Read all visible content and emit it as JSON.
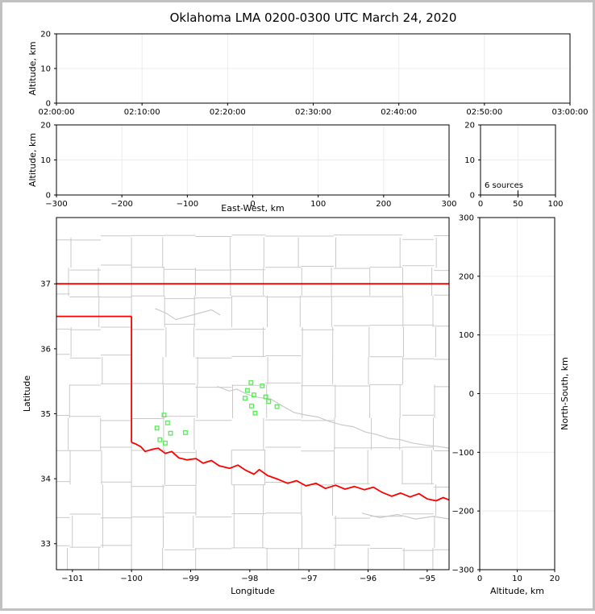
{
  "title": "Oklahoma LMA 0200-0300 UTC March 24, 2020",
  "colors": {
    "background": "#ffffff",
    "frame_border": "#c1c1c1",
    "axis": "#000000",
    "grid": "#ececec",
    "county_line": "#c9c9c9",
    "state_border": "#ff0000",
    "station_marker": "#55ee55",
    "histogram_line": "#000000"
  },
  "chart_data": [
    {
      "id": "time_altitude",
      "type": "scatter",
      "xlabel": "",
      "ylabel": "Altitude, km",
      "xlim": [
        0,
        3600
      ],
      "ylim": [
        0,
        20
      ],
      "xticks": [
        0,
        600,
        1200,
        1800,
        2400,
        3000,
        3600
      ],
      "xtick_labels": [
        "02:00:00",
        "02:10:00",
        "02:20:00",
        "02:30:00",
        "02:40:00",
        "02:50:00",
        "03:00:00"
      ],
      "yticks": [
        0,
        10,
        20
      ],
      "ytick_labels": [
        "0",
        "10",
        "20"
      ],
      "grid": true,
      "points": []
    },
    {
      "id": "eastwest_altitude",
      "type": "scatter",
      "xlabel": "East-West, km",
      "ylabel": "Altitude, km",
      "xlim": [
        -300,
        300
      ],
      "ylim": [
        0,
        20
      ],
      "xticks": [
        -300,
        -200,
        -100,
        0,
        100,
        200,
        300
      ],
      "xtick_labels": [
        "−300",
        "−200",
        "−100",
        "0",
        "100",
        "200",
        "300"
      ],
      "yticks": [
        0,
        10,
        20
      ],
      "ytick_labels": [
        "0",
        "10",
        "20"
      ],
      "grid": true,
      "points": []
    },
    {
      "id": "altitude_histogram",
      "type": "line",
      "annotation": "6 sources",
      "xlabel": "",
      "ylabel": "",
      "xlim": [
        0,
        100
      ],
      "ylim": [
        0,
        20
      ],
      "xticks": [
        0,
        50,
        100
      ],
      "xtick_labels": [
        "0",
        "50",
        "100"
      ],
      "yticks": [
        0,
        10,
        20
      ],
      "ytick_labels": [
        "0",
        "10",
        "20"
      ],
      "grid": true,
      "series": [
        {
          "name": "source-count-profile",
          "color": "#000000",
          "points": [
            [
              50,
              0
            ],
            [
              50,
              1.3
            ]
          ]
        }
      ]
    },
    {
      "id": "plan_view_map",
      "type": "scatter",
      "xlabel": "Longitude",
      "ylabel": "Latitude",
      "xlim": [
        -101.27,
        -94.63
      ],
      "ylim": [
        32.6,
        38.02
      ],
      "xticks": [
        -101,
        -100,
        -99,
        -98,
        -97,
        -96,
        -95
      ],
      "xtick_labels": [
        "−101",
        "−100",
        "−99",
        "−98",
        "−97",
        "−96",
        "−95"
      ],
      "yticks": [
        33,
        34,
        35,
        36,
        37
      ],
      "ytick_labels": [
        "33",
        "34",
        "35",
        "36",
        "37"
      ],
      "grid": false,
      "series": [
        {
          "name": "lma-stations",
          "marker": "open-square",
          "color": "#55ee55",
          "points": [
            [
              -97.98,
              35.48
            ],
            [
              -97.79,
              35.43
            ],
            [
              -98.04,
              35.36
            ],
            [
              -97.93,
              35.29
            ],
            [
              -98.08,
              35.24
            ],
            [
              -97.73,
              35.26
            ],
            [
              -97.68,
              35.19
            ],
            [
              -97.97,
              35.12
            ],
            [
              -97.54,
              35.11
            ],
            [
              -97.91,
              35.01
            ],
            [
              -99.45,
              34.98
            ],
            [
              -99.39,
              34.86
            ],
            [
              -99.57,
              34.78
            ],
            [
              -99.34,
              34.7
            ],
            [
              -99.09,
              34.71
            ],
            [
              -99.52,
              34.6
            ],
            [
              -99.43,
              34.55
            ]
          ]
        }
      ],
      "state_border": {
        "color": "#ff0000",
        "polylines": [
          [
            [
              -101.28,
              37.0
            ],
            [
              -94.62,
              37.0
            ]
          ],
          [
            [
              -101.28,
              36.5
            ],
            [
              -100.0,
              36.5
            ]
          ],
          [
            [
              -100.0,
              36.5
            ],
            [
              -100.0,
              34.56
            ]
          ],
          [
            [
              -100.0,
              34.56
            ],
            [
              -99.94,
              34.54
            ],
            [
              -99.84,
              34.49
            ],
            [
              -99.77,
              34.42
            ],
            [
              -99.66,
              34.45
            ],
            [
              -99.55,
              34.47
            ],
            [
              -99.43,
              34.39
            ],
            [
              -99.32,
              34.42
            ],
            [
              -99.2,
              34.32
            ],
            [
              -99.06,
              34.29
            ],
            [
              -98.91,
              34.31
            ],
            [
              -98.79,
              34.24
            ],
            [
              -98.65,
              34.28
            ],
            [
              -98.52,
              34.2
            ],
            [
              -98.34,
              34.16
            ],
            [
              -98.2,
              34.21
            ],
            [
              -98.07,
              34.13
            ],
            [
              -97.93,
              34.07
            ],
            [
              -97.84,
              34.14
            ],
            [
              -97.7,
              34.05
            ],
            [
              -97.52,
              33.99
            ],
            [
              -97.36,
              33.93
            ],
            [
              -97.21,
              33.97
            ],
            [
              -97.05,
              33.89
            ],
            [
              -96.88,
              33.93
            ],
            [
              -96.72,
              33.85
            ],
            [
              -96.55,
              33.9
            ],
            [
              -96.39,
              33.84
            ],
            [
              -96.23,
              33.88
            ],
            [
              -96.06,
              33.83
            ],
            [
              -95.91,
              33.87
            ],
            [
              -95.76,
              33.79
            ],
            [
              -95.6,
              33.73
            ],
            [
              -95.45,
              33.78
            ],
            [
              -95.29,
              33.72
            ],
            [
              -95.14,
              33.77
            ],
            [
              -95.0,
              33.69
            ],
            [
              -94.85,
              33.66
            ],
            [
              -94.73,
              33.71
            ],
            [
              -94.62,
              33.67
            ]
          ]
        ]
      },
      "rivers": [
        [
          [
            -98.55,
            35.42
          ],
          [
            -98.35,
            35.35
          ],
          [
            -98.22,
            35.38
          ],
          [
            -98.05,
            35.3
          ],
          [
            -97.85,
            35.25
          ],
          [
            -97.65,
            35.23
          ],
          [
            -97.45,
            35.12
          ],
          [
            -97.25,
            35.02
          ],
          [
            -97.05,
            34.98
          ],
          [
            -96.85,
            34.95
          ],
          [
            -96.65,
            34.88
          ],
          [
            -96.45,
            34.83
          ],
          [
            -96.25,
            34.8
          ],
          [
            -96.05,
            34.72
          ],
          [
            -95.85,
            34.68
          ],
          [
            -95.65,
            34.62
          ],
          [
            -95.45,
            34.6
          ],
          [
            -95.25,
            34.55
          ],
          [
            -95.05,
            34.52
          ],
          [
            -94.85,
            34.5
          ],
          [
            -94.62,
            34.47
          ]
        ],
        [
          [
            -99.6,
            36.62
          ],
          [
            -99.42,
            36.55
          ],
          [
            -99.25,
            36.45
          ],
          [
            -99.05,
            36.5
          ],
          [
            -98.85,
            36.55
          ],
          [
            -98.65,
            36.6
          ],
          [
            -98.5,
            36.52
          ]
        ],
        [
          [
            -96.1,
            33.47
          ],
          [
            -95.8,
            33.4
          ],
          [
            -95.5,
            33.45
          ],
          [
            -95.2,
            33.38
          ],
          [
            -94.9,
            33.42
          ],
          [
            -94.62,
            33.38
          ]
        ]
      ]
    },
    {
      "id": "northsouth_altitude",
      "type": "scatter",
      "xlabel": "Altitude, km",
      "ylabel": "North-South, km",
      "xlim": [
        0,
        20
      ],
      "ylim": [
        -300,
        300
      ],
      "xticks": [
        0,
        10,
        20
      ],
      "xtick_labels": [
        "0",
        "10",
        "20"
      ],
      "yticks": [
        -300,
        -200,
        -100,
        0,
        100,
        200,
        300
      ],
      "ytick_labels": [
        "−300",
        "−200",
        "−100",
        "0",
        "100",
        "200",
        "300"
      ],
      "grid": true,
      "points": []
    }
  ]
}
